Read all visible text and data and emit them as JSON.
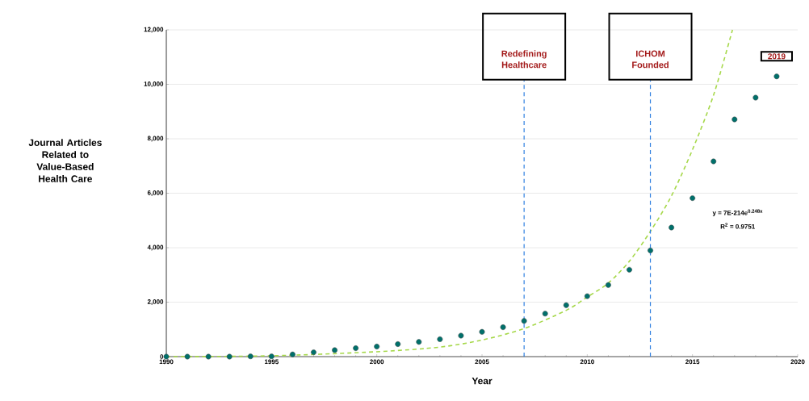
{
  "chart_data": {
    "type": "scatter",
    "xlabel": "Year",
    "ylabel": "Journal Articles Related to Value-Based Health Care",
    "x": [
      1990,
      1991,
      1992,
      1993,
      1994,
      1995,
      1996,
      1997,
      1998,
      1999,
      2000,
      2001,
      2002,
      2003,
      2004,
      2005,
      2006,
      2007,
      2008,
      2009,
      2010,
      2011,
      2012,
      2013,
      2014,
      2015,
      2016,
      2017,
      2018,
      2019
    ],
    "series": [
      {
        "color": "#00706b",
        "marker": "circle",
        "values": [
          0,
          0,
          0,
          0,
          10,
          10,
          80,
          160,
          240,
          310,
          370,
          460,
          540,
          640,
          770,
          910,
          1080,
          1310,
          1580,
          1890,
          2220,
          2630,
          3190,
          3900,
          4740,
          5820,
          7170,
          8710,
          9510,
          10290
        ]
      },
      {
        "type": "line",
        "color": "#a6d84a",
        "line_style": "dashed",
        "marker": "none",
        "x": [
          1990,
          1995,
          2000,
          2003,
          2005,
          2007,
          2009,
          2010,
          2011,
          2012,
          2013,
          2014,
          2015,
          2016,
          2016.9
        ],
        "values": [
          0,
          30,
          180,
          350,
          610,
          1030,
          1700,
          2190,
          2700,
          3500,
          4600,
          5900,
          7600,
          9600,
          12000
        ]
      }
    ],
    "xlim": [
      1990,
      2020
    ],
    "ylim": [
      0,
      12000
    ],
    "xticks": [
      1990,
      1995,
      2000,
      2005,
      2010,
      2015,
      2020
    ],
    "yticks": [
      {
        "value": 0,
        "label": "0"
      },
      {
        "value": 2000,
        "label": "2,000"
      },
      {
        "value": 4000,
        "label": "4,000"
      },
      {
        "value": 6000,
        "label": "6,000"
      },
      {
        "value": 8000,
        "label": "8,000"
      },
      {
        "value": 10000,
        "label": "10,000"
      },
      {
        "value": 12000,
        "label": "12,000"
      }
    ],
    "grid": "y",
    "ref_lines": [
      {
        "axis": "x",
        "value": 2007,
        "label": "Redefining Healthcare",
        "color": "#2f7fe0",
        "line_style": "dashed"
      },
      {
        "axis": "x",
        "value": 2013,
        "label": "ICHOM Founded",
        "color": "#2f7fe0",
        "line_style": "dashed"
      }
    ],
    "annotations": [
      {
        "text": "2019",
        "x": 2019,
        "y": 10290
      },
      "y = 7E-214e$^{0.248x}$",
      "R$^{2}$ = 0.9751"
    ]
  }
}
